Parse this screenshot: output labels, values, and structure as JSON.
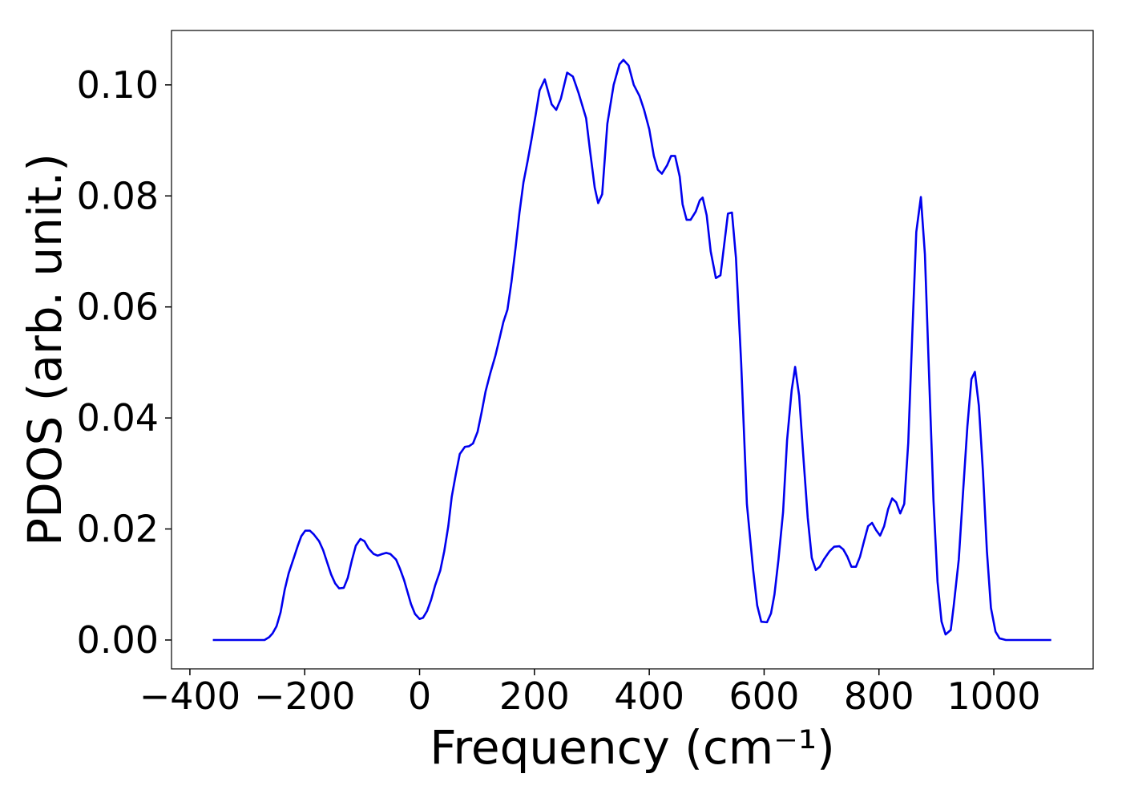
{
  "chart_data": {
    "type": "line",
    "xlabel": "Frequency (cm⁻¹)",
    "ylabel": "PDOS (arb. unit.)",
    "xlim": [
      -432,
      1173
    ],
    "ylim": [
      -0.0052,
      0.1098
    ],
    "xticks": [
      {
        "value": -400,
        "label": "−400"
      },
      {
        "value": -200,
        "label": "−200"
      },
      0,
      200,
      400,
      600,
      800,
      1000
    ],
    "yticks": [
      {
        "value": 0,
        "label": "0.00"
      },
      {
        "value": 0.02,
        "label": "0.02"
      },
      {
        "value": 0.04,
        "label": "0.04"
      },
      {
        "value": 0.06,
        "label": "0.06"
      },
      {
        "value": 0.08,
        "label": "0.08"
      },
      {
        "value": 0.1,
        "label": "0.10"
      }
    ],
    "grid": false,
    "series": [
      {
        "name": "PDOS",
        "color": "#0000ee",
        "x": [
          -360,
          -270,
          -262,
          -256,
          -249,
          -242,
          -235,
          -228,
          -219,
          -212,
          -206,
          -199,
          -191,
          -184,
          -175,
          -168,
          -161,
          -154,
          -147,
          -140,
          -132,
          -125,
          -118,
          -111,
          -103,
          -96,
          -89,
          -80,
          -73,
          -65,
          -58,
          -51,
          -41,
          -34,
          -27,
          -20,
          -15,
          -8,
          0,
          6,
          13,
          20,
          27,
          36,
          43,
          50,
          56,
          63,
          70,
          79,
          86,
          93,
          101,
          108,
          115,
          123,
          132,
          139,
          146,
          153,
          160,
          167,
          174,
          181,
          188,
          195,
          202,
          209,
          218,
          230,
          238,
          246,
          257,
          267,
          277,
          290,
          297,
          305,
          311,
          318,
          327,
          338,
          348,
          355,
          364,
          373,
          383,
          391,
          400,
          408,
          415,
          422,
          431,
          438,
          445,
          453,
          458,
          465,
          472,
          481,
          488,
          493,
          500,
          507,
          516,
          524,
          537,
          544,
          551,
          560,
          570,
          581,
          588,
          595,
          605,
          612,
          618,
          625,
          633,
          640,
          648,
          654,
          661,
          668,
          676,
          683,
          690,
          697,
          704,
          714,
          722,
          731,
          738,
          745,
          752,
          760,
          767,
          774,
          781,
          788,
          795,
          802,
          809,
          816,
          823,
          830,
          837,
          844,
          851,
          858,
          865,
          873,
          880,
          888,
          895,
          902,
          909,
          916,
          925,
          930,
          939,
          947,
          954,
          961,
          967,
          974,
          981,
          988,
          995,
          1003,
          1010,
          1021,
          1100
        ],
        "values": [
          0,
          0,
          0.0005,
          0.0012,
          0.0025,
          0.005,
          0.009,
          0.012,
          0.0148,
          0.017,
          0.0187,
          0.0197,
          0.0197,
          0.019,
          0.0178,
          0.0162,
          0.014,
          0.0118,
          0.0102,
          0.0093,
          0.0094,
          0.0112,
          0.0143,
          0.017,
          0.0182,
          0.0178,
          0.0165,
          0.0155,
          0.0152,
          0.0155,
          0.0157,
          0.0155,
          0.0145,
          0.0128,
          0.0108,
          0.0083,
          0.0065,
          0.0047,
          0.0038,
          0.004,
          0.0052,
          0.0072,
          0.0098,
          0.0125,
          0.016,
          0.0205,
          0.0258,
          0.0298,
          0.0335,
          0.0348,
          0.0349,
          0.0354,
          0.0375,
          0.041,
          0.0448,
          0.048,
          0.0512,
          0.0542,
          0.0573,
          0.0595,
          0.0645,
          0.0705,
          0.077,
          0.0825,
          0.0862,
          0.0902,
          0.0945,
          0.099,
          0.101,
          0.0965,
          0.0955,
          0.0975,
          0.1022,
          0.1015,
          0.0985,
          0.094,
          0.088,
          0.0815,
          0.0787,
          0.0803,
          0.093,
          0.1,
          0.1037,
          0.1045,
          0.1035,
          0.1,
          0.098,
          0.0955,
          0.092,
          0.0872,
          0.0847,
          0.084,
          0.0855,
          0.0872,
          0.0872,
          0.0835,
          0.0785,
          0.0757,
          0.0757,
          0.0772,
          0.0792,
          0.0797,
          0.0765,
          0.07,
          0.0652,
          0.0657,
          0.0768,
          0.077,
          0.0688,
          0.05,
          0.0245,
          0.0125,
          0.0062,
          0.0033,
          0.0032,
          0.0048,
          0.0082,
          0.0145,
          0.023,
          0.036,
          0.045,
          0.0492,
          0.044,
          0.0335,
          0.022,
          0.0148,
          0.0126,
          0.0132,
          0.0145,
          0.016,
          0.0168,
          0.0169,
          0.0163,
          0.015,
          0.0132,
          0.0132,
          0.015,
          0.0178,
          0.0205,
          0.0211,
          0.0198,
          0.0188,
          0.0205,
          0.0236,
          0.0255,
          0.0248,
          0.0228,
          0.0245,
          0.0355,
          0.055,
          0.0735,
          0.0798,
          0.0695,
          0.0455,
          0.025,
          0.0105,
          0.0033,
          0.001,
          0.0018,
          0.006,
          0.0145,
          0.0275,
          0.0385,
          0.047,
          0.0483,
          0.0422,
          0.0305,
          0.016,
          0.0058,
          0.0015,
          0.0003,
          0,
          0
        ]
      }
    ]
  }
}
